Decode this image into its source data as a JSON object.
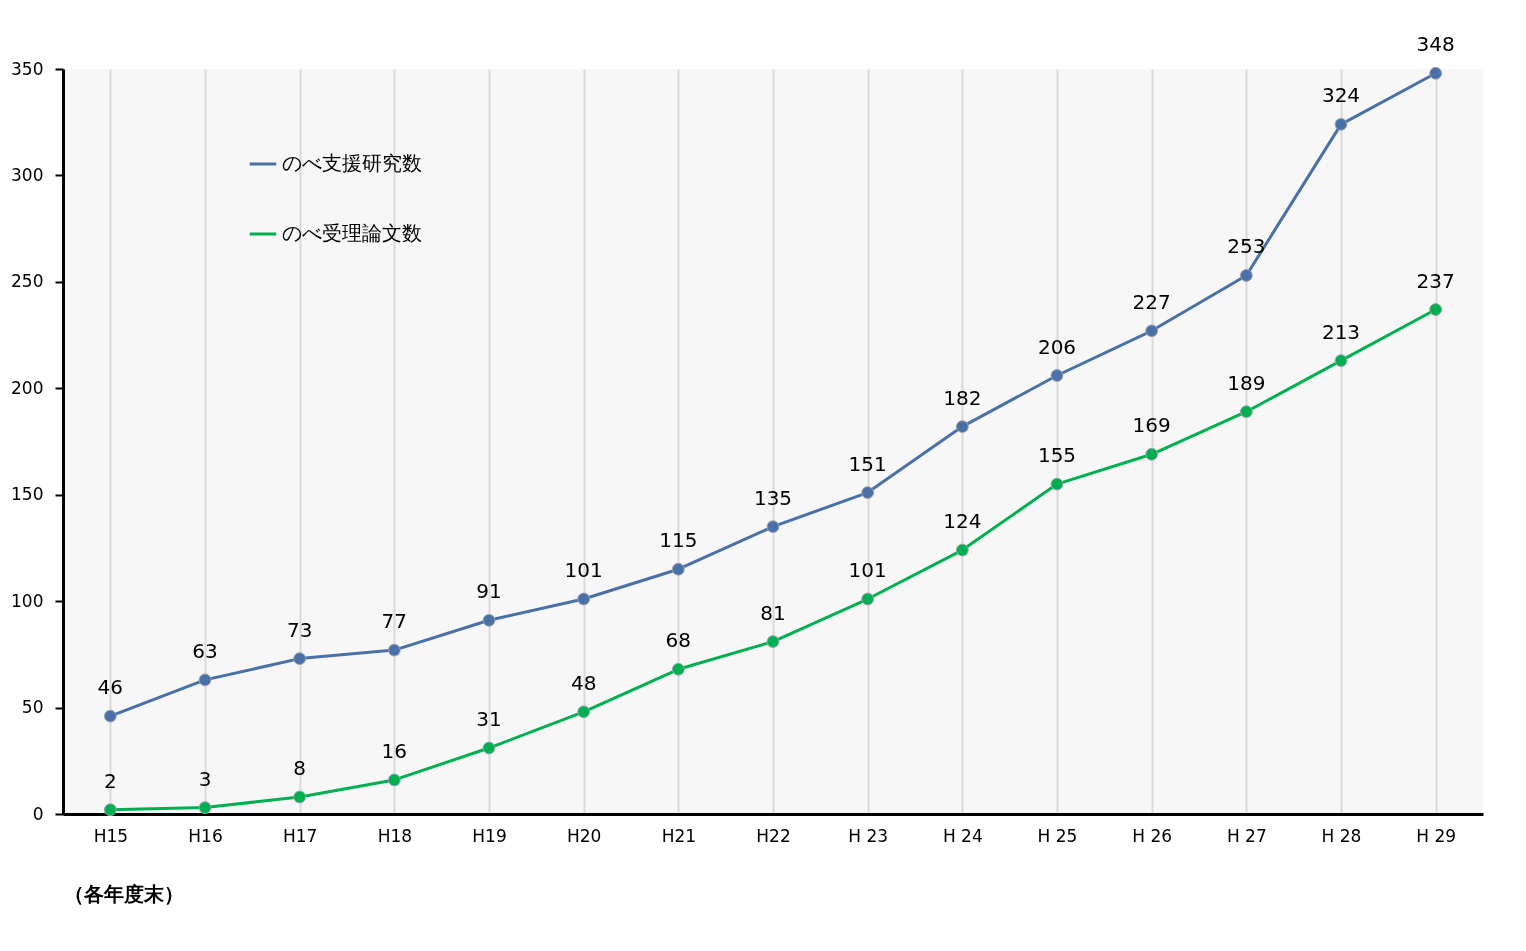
{
  "chart_data": {
    "type": "line",
    "xlabel": "（各年度末）",
    "categories": [
      "H15",
      "H16",
      "H17",
      "H18",
      "H19",
      "H20",
      "H21",
      "H22",
      "H 23",
      "H 24",
      "H 25",
      "H 26",
      "H 27",
      "H 28",
      "H 29"
    ],
    "series": [
      {
        "name": "のべ支援研究数",
        "color": "#4a70a8",
        "values": [
          46,
          63,
          73,
          77,
          91,
          101,
          115,
          135,
          151,
          182,
          206,
          227,
          253,
          324,
          348
        ]
      },
      {
        "name": "のべ受理論文数",
        "color": "#00b050",
        "values": [
          2,
          3,
          8,
          16,
          31,
          48,
          68,
          81,
          101,
          124,
          155,
          169,
          189,
          213,
          237
        ]
      }
    ],
    "ylim": [
      0,
      350
    ],
    "yticks": [
      0,
      50,
      100,
      150,
      200,
      250,
      300,
      350
    ],
    "grid": "x",
    "legend": "top left",
    "marker": "circle",
    "line_style": "solid",
    "data_labels": true
  }
}
